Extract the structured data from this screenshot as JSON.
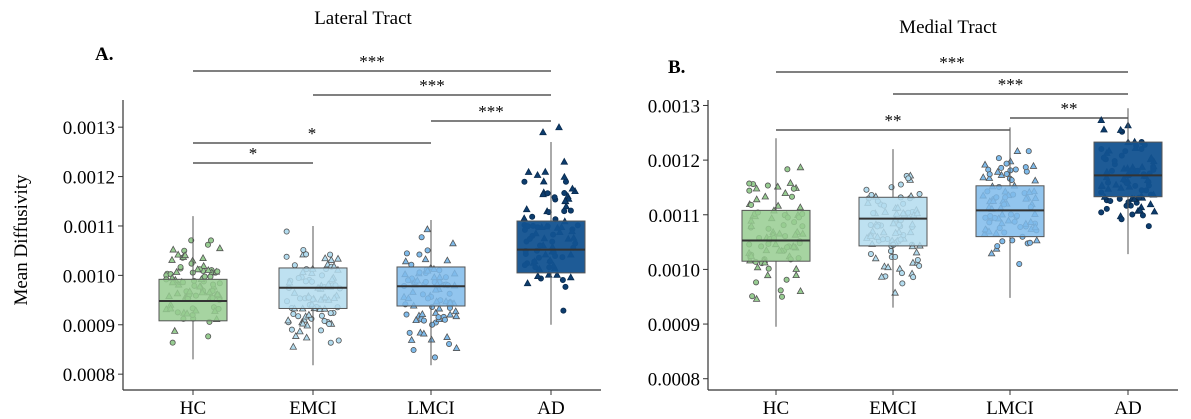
{
  "figure": {
    "ylabel": "Mean Diffusivity",
    "colors": {
      "HC": "#97cc91",
      "EMCI": "#b3dcef",
      "LMCI": "#7fbbeb",
      "AD": "#125290",
      "median": "#333333",
      "axis": "#333333",
      "bracket": "#000000"
    }
  },
  "chart_data": [
    {
      "type": "box",
      "panel_label": "A.",
      "title": "Lateral Tract",
      "ylabel": "Mean Diffusivity",
      "categories": [
        "HC",
        "EMCI",
        "LMCI",
        "AD"
      ],
      "ylim": [
        0.00078,
        0.00133
      ],
      "yticks": [
        "0.0008",
        "0.0009",
        "0.0010",
        "0.0011",
        "0.0012",
        "0.0013"
      ],
      "boxes": [
        {
          "group": "HC",
          "whisker_low": 0.00083,
          "q1": 0.000908,
          "median": 0.000948,
          "q3": 0.000992,
          "whisker_high": 0.00112,
          "outliers": []
        },
        {
          "group": "EMCI",
          "whisker_low": 0.000818,
          "q1": 0.000933,
          "median": 0.000975,
          "q3": 0.001015,
          "whisker_high": 0.0011,
          "outliers": []
        },
        {
          "group": "LMCI",
          "whisker_low": 0.000818,
          "q1": 0.000938,
          "median": 0.000978,
          "q3": 0.001017,
          "whisker_high": 0.001112,
          "outliers": []
        },
        {
          "group": "AD",
          "whisker_low": 0.0009,
          "q1": 0.001005,
          "median": 0.001052,
          "q3": 0.00111,
          "whisker_high": 0.00127,
          "outliers": [
            0.0013,
            0.00129
          ]
        }
      ],
      "significance": [
        {
          "from": "HC",
          "to": "EMCI",
          "label": "*"
        },
        {
          "from": "HC",
          "to": "LMCI",
          "label": "*"
        },
        {
          "from": "LMCI",
          "to": "AD",
          "label": "***"
        },
        {
          "from": "EMCI",
          "to": "AD",
          "label": "***"
        },
        {
          "from": "HC",
          "to": "AD",
          "label": "***"
        }
      ]
    },
    {
      "type": "box",
      "panel_label": "B.",
      "title": "Medial Tract",
      "ylabel": "",
      "categories": [
        "HC",
        "EMCI",
        "LMCI",
        "AD"
      ],
      "ylim": [
        0.00078,
        0.0013
      ],
      "yticks": [
        "0.0008",
        "0.0009",
        "0.0010",
        "0.0011",
        "0.0012",
        "0.0013"
      ],
      "boxes": [
        {
          "group": "HC",
          "whisker_low": 0.000895,
          "q1": 0.001015,
          "median": 0.001053,
          "q3": 0.001108,
          "whisker_high": 0.00124,
          "outliers": []
        },
        {
          "group": "EMCI",
          "whisker_low": 0.00093,
          "q1": 0.001043,
          "median": 0.001093,
          "q3": 0.001132,
          "whisker_high": 0.00122,
          "outliers": []
        },
        {
          "group": "LMCI",
          "whisker_low": 0.000948,
          "q1": 0.00106,
          "median": 0.001108,
          "q3": 0.001153,
          "whisker_high": 0.00126,
          "outliers": []
        },
        {
          "group": "AD",
          "whisker_low": 0.001028,
          "q1": 0.001133,
          "median": 0.001172,
          "q3": 0.001233,
          "whisker_high": 0.001295,
          "outliers": []
        }
      ],
      "significance": [
        {
          "from": "HC",
          "to": "LMCI",
          "label": "**"
        },
        {
          "from": "LMCI",
          "to": "AD",
          "label": "**"
        },
        {
          "from": "EMCI",
          "to": "AD",
          "label": "***"
        },
        {
          "from": "HC",
          "to": "AD",
          "label": "***"
        }
      ]
    }
  ]
}
